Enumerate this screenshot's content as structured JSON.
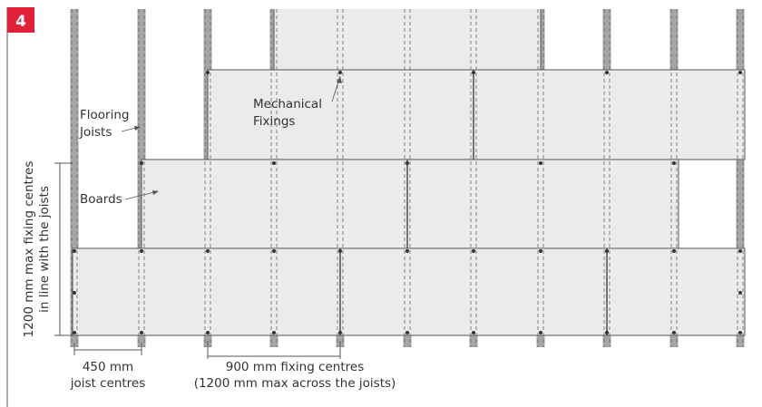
{
  "figure": {
    "number": "4",
    "accent_color": "#e2203a",
    "joist_color": "#a6a6a6",
    "board_color": "#ebebeb",
    "line_color": "#555555"
  },
  "labels": {
    "mechanical_fixings": [
      "Mechanical",
      "Fixings"
    ],
    "flooring_joists": [
      "Flooring",
      "Joists"
    ],
    "boards": "Boards",
    "vertical_dimension": [
      "1200 mm max fixing centres",
      "in line with the joists"
    ],
    "joist_centres": [
      "450 mm",
      "joist centres"
    ],
    "fixing_centres": [
      "900 mm fixing centres",
      "(1200 mm max across the joists)"
    ]
  }
}
